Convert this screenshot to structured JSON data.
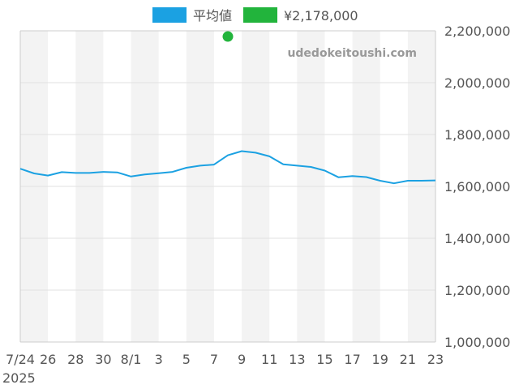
{
  "chart_data": {
    "type": "line",
    "title": "",
    "xlabel": "",
    "ylabel": "",
    "watermark": "udedokeitoushi.com",
    "legend": {
      "placement": "top-center",
      "items": [
        {
          "label": "平均値",
          "color": "#1ba1e2"
        },
        {
          "label": "¥2,178,000",
          "color": "#22b43c"
        }
      ]
    },
    "x_ticks": [
      {
        "day": 0,
        "label": "7/24"
      },
      {
        "day": 2,
        "label": "26"
      },
      {
        "day": 4,
        "label": "28"
      },
      {
        "day": 6,
        "label": "30"
      },
      {
        "day": 8,
        "label": "8/1"
      },
      {
        "day": 10,
        "label": "3"
      },
      {
        "day": 12,
        "label": "5"
      },
      {
        "day": 14,
        "label": "7"
      },
      {
        "day": 16,
        "label": "9"
      },
      {
        "day": 18,
        "label": "11"
      },
      {
        "day": 20,
        "label": "13"
      },
      {
        "day": 22,
        "label": "15"
      },
      {
        "day": 24,
        "label": "17"
      },
      {
        "day": 26,
        "label": "19"
      },
      {
        "day": 28,
        "label": "21"
      },
      {
        "day": 30,
        "label": "23"
      }
    ],
    "year_label": "2025",
    "x_range": [
      0,
      30
    ],
    "ylim": [
      1000000,
      2200000
    ],
    "y_ticks": [
      {
        "value": 2200000,
        "label": "2,200,000"
      },
      {
        "value": 2000000,
        "label": "2,000,000"
      },
      {
        "value": 1800000,
        "label": "1,800,000"
      },
      {
        "value": 1600000,
        "label": "1,600,000"
      },
      {
        "value": 1400000,
        "label": "1,400,000"
      },
      {
        "value": 1200000,
        "label": "1,200,000"
      },
      {
        "value": 1000000,
        "label": "1,000,000"
      }
    ],
    "grid": true,
    "series": [
      {
        "name": "平均値",
        "type": "line",
        "color": "#1ba1e2",
        "x": [
          0,
          1,
          2,
          3,
          4,
          5,
          6,
          7,
          8,
          9,
          10,
          11,
          12,
          13,
          14,
          15,
          16,
          17,
          18,
          19,
          20,
          21,
          22,
          23,
          24,
          25,
          26,
          27,
          28,
          29,
          30
        ],
        "y": [
          1668000,
          1650000,
          1642000,
          1655000,
          1652000,
          1652000,
          1656000,
          1654000,
          1638000,
          1646000,
          1651000,
          1656000,
          1672000,
          1680000,
          1684000,
          1720000,
          1736000,
          1730000,
          1716000,
          1685000,
          1680000,
          1675000,
          1661000,
          1635000,
          1640000,
          1636000,
          1622000,
          1612000,
          1622000,
          1622000,
          1623000
        ]
      },
      {
        "name": "¥2,178,000",
        "type": "scatter",
        "color": "#22b43c",
        "x": [
          15
        ],
        "y": [
          2178000
        ]
      }
    ]
  }
}
